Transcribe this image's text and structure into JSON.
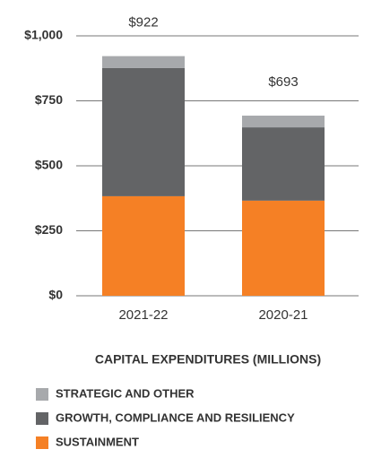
{
  "chart_data": {
    "type": "stacked_bar",
    "title": "CAPITAL EXPENDITURES (MILLIONS)",
    "categories": [
      "2021-22",
      "2020-21"
    ],
    "series": [
      {
        "name": "SUSTAINMENT",
        "color": "#f58025",
        "values": [
          383,
          366
        ]
      },
      {
        "name": "GROWTH, COMPLIANCE AND RESILIENCY",
        "color": "#636466",
        "values": [
          493,
          282
        ]
      },
      {
        "name": "STRATEGIC AND OTHER",
        "color": "#a7a9ac",
        "values": [
          46,
          45
        ]
      }
    ],
    "totals": [
      922,
      693
    ],
    "total_labels": [
      "$922",
      "$693"
    ],
    "ylim": [
      0,
      1000
    ],
    "yticks": [
      {
        "value": 0,
        "label": "$0"
      },
      {
        "value": 250,
        "label": "$250"
      },
      {
        "value": 500,
        "label": "$500"
      },
      {
        "value": 750,
        "label": "$750"
      },
      {
        "value": 1000,
        "label": "$1,000"
      }
    ],
    "grid": true
  }
}
